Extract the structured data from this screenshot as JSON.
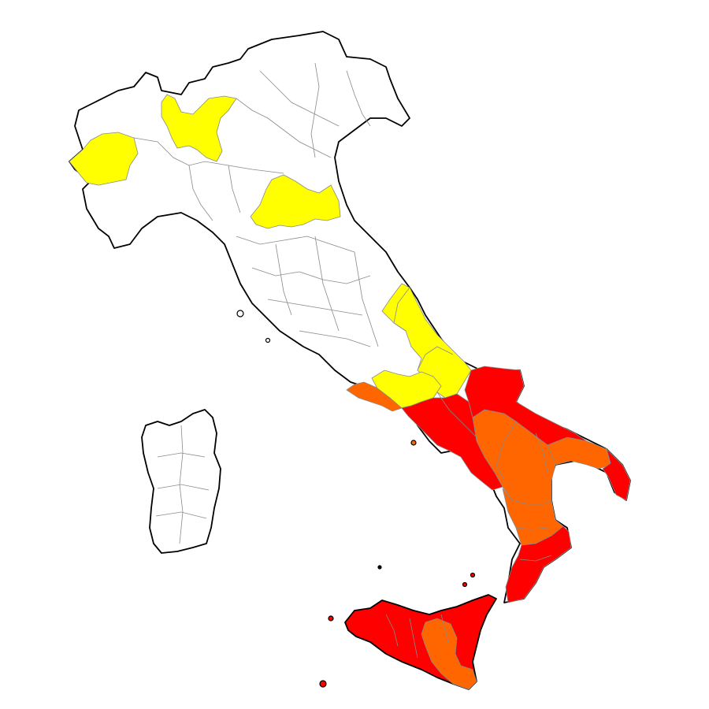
{
  "map": {
    "colors": {
      "background": "#ffffff",
      "land": "#ffffff",
      "border": "#000000",
      "internal_border": "#8a8a8a",
      "level_yellow": "#ffff00",
      "level_orange": "#ff6600",
      "level_red": "#ff0000"
    },
    "regions": [
      {
        "id": "piemonte-west",
        "level": "yellow"
      },
      {
        "id": "lombardia-alpine",
        "level": "yellow"
      },
      {
        "id": "emilia-central",
        "level": "yellow"
      },
      {
        "id": "abruzzo-molise-coast",
        "level": "yellow"
      },
      {
        "id": "lazio-south",
        "level": "yellow"
      },
      {
        "id": "campania-coast-west",
        "level": "orange"
      },
      {
        "id": "campania-inner",
        "level": "red"
      },
      {
        "id": "puglia-north",
        "level": "red"
      },
      {
        "id": "basilicata",
        "level": "orange"
      },
      {
        "id": "puglia-taranto",
        "level": "orange"
      },
      {
        "id": "salento",
        "level": "red"
      },
      {
        "id": "calabria-north",
        "level": "orange"
      },
      {
        "id": "calabria-south",
        "level": "red"
      },
      {
        "id": "sicilia",
        "level": "red"
      },
      {
        "id": "sicilia-central",
        "level": "orange"
      }
    ]
  }
}
